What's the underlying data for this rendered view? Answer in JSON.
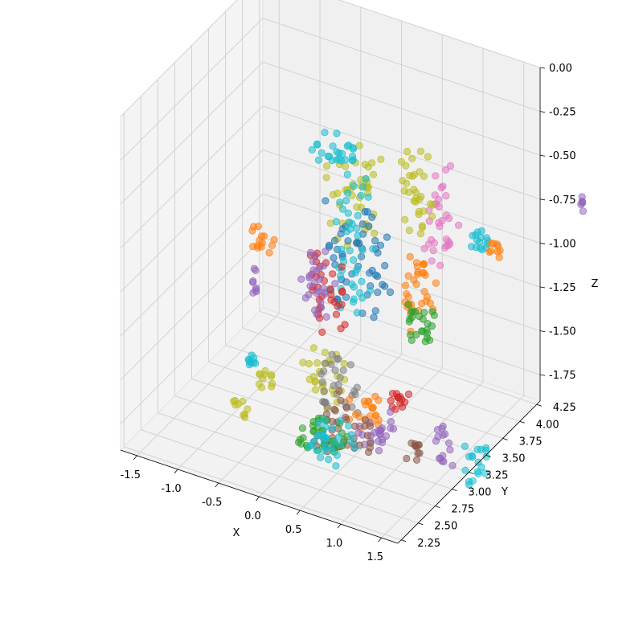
{
  "chart_data": {
    "type": "scatter",
    "projection": "3d",
    "title": "",
    "xlabel": "X",
    "ylabel": "Y",
    "zlabel": "Z",
    "xlim": [
      -1.7,
      1.7
    ],
    "ylim": [
      2.2,
      4.3
    ],
    "zlim": [
      -1.9,
      0.0
    ],
    "x_ticks": [
      "-1.5",
      "-1.0",
      "-0.5",
      "0.0",
      "0.5",
      "1.0",
      "1.5"
    ],
    "y_ticks": [
      "2.25",
      "2.50",
      "2.75",
      "3.00",
      "3.25",
      "3.50",
      "3.75",
      "4.00",
      "4.25"
    ],
    "z_ticks": [
      "0.00",
      "-0.25",
      "-0.50",
      "-0.75",
      "-1.00",
      "-1.25",
      "-1.50",
      "-1.75"
    ],
    "grid": true,
    "legend": "none",
    "marker": "circle",
    "marker_alpha": 0.55,
    "color_cycle": [
      "#1f77b4",
      "#ff7f0e",
      "#2ca02c",
      "#d62728",
      "#9467bd",
      "#8c564b",
      "#e377c2",
      "#7f7f7f",
      "#bcbd22",
      "#17becf"
    ],
    "clusters": [
      {
        "color": "#17becf",
        "center": [
          0.25,
          3.3,
          -0.85
        ],
        "size": [
          0.35,
          0.3,
          0.7
        ]
      },
      {
        "color": "#bcbd22",
        "center": [
          0.0,
          3.55,
          -0.7
        ],
        "size": [
          0.5,
          0.35,
          0.5
        ]
      },
      {
        "color": "#1f77b4",
        "center": [
          0.15,
          3.45,
          -1.0
        ],
        "size": [
          0.7,
          0.4,
          0.6
        ]
      },
      {
        "color": "#bcbd22",
        "center": [
          0.6,
          3.8,
          -0.7
        ],
        "size": [
          0.35,
          0.3,
          0.45
        ]
      },
      {
        "color": "#e377c2",
        "center": [
          0.85,
          3.85,
          -0.8
        ],
        "size": [
          0.25,
          0.3,
          0.5
        ]
      },
      {
        "color": "#ff7f0e",
        "center": [
          0.7,
          3.7,
          -1.2
        ],
        "size": [
          0.35,
          0.3,
          0.4
        ]
      },
      {
        "color": "#d62728",
        "center": [
          -0.05,
          3.3,
          -1.15
        ],
        "size": [
          0.35,
          0.3,
          0.45
        ]
      },
      {
        "color": "#9467bd",
        "center": [
          -0.2,
          3.3,
          -1.15
        ],
        "size": [
          0.2,
          0.3,
          0.4
        ]
      },
      {
        "color": "#2ca02c",
        "center": [
          0.75,
          3.65,
          -1.35
        ],
        "size": [
          0.35,
          0.25,
          0.2
        ]
      },
      {
        "color": "#17becf",
        "center": [
          -0.1,
          3.45,
          -0.45
        ],
        "size": [
          0.5,
          0.2,
          0.15
        ]
      },
      {
        "color": "#7f7f7f",
        "center": [
          0.3,
          3.05,
          -1.55
        ],
        "size": [
          0.5,
          0.25,
          0.25
        ]
      },
      {
        "color": "#17becf",
        "center": [
          0.35,
          2.8,
          -1.75
        ],
        "size": [
          0.45,
          0.35,
          0.2
        ]
      },
      {
        "color": "#2ca02c",
        "center": [
          0.25,
          2.85,
          -1.75
        ],
        "size": [
          0.55,
          0.4,
          0.15
        ]
      },
      {
        "color": "#8c564b",
        "center": [
          0.5,
          2.9,
          -1.7
        ],
        "size": [
          0.6,
          0.4,
          0.2
        ]
      },
      {
        "color": "#ff7f0e",
        "center": [
          0.6,
          3.05,
          -1.65
        ],
        "size": [
          0.35,
          0.2,
          0.15
        ]
      },
      {
        "color": "#9467bd",
        "center": [
          0.8,
          2.95,
          -1.7
        ],
        "size": [
          0.3,
          0.3,
          0.15
        ]
      },
      {
        "color": "#bcbd22",
        "center": [
          0.05,
          3.1,
          -1.55
        ],
        "size": [
          0.4,
          0.2,
          0.3
        ]
      },
      {
        "color": "#ff7f0e",
        "center": [
          -0.95,
          3.4,
          -1.05
        ],
        "size": [
          0.25,
          0.05,
          0.15
        ]
      },
      {
        "color": "#9467bd",
        "center": [
          -1.05,
          3.4,
          -1.3
        ],
        "size": [
          0.05,
          0.05,
          0.15
        ]
      },
      {
        "color": "#17becf",
        "center": [
          1.2,
          4.05,
          -1.0
        ],
        "size": [
          0.3,
          0.05,
          0.15
        ]
      },
      {
        "color": "#ff7f0e",
        "center": [
          1.35,
          4.05,
          -1.0
        ],
        "size": [
          0.15,
          0.05,
          0.1
        ]
      },
      {
        "color": "#9467bd",
        "center": [
          1.55,
          3.05,
          -1.7
        ],
        "size": [
          0.15,
          0.1,
          0.25
        ]
      },
      {
        "color": "#17becf",
        "center": [
          1.95,
          3.05,
          -1.75
        ],
        "size": [
          0.25,
          0.1,
          0.25
        ]
      },
      {
        "color": "#8c564b",
        "center": [
          1.35,
          2.85,
          -1.7
        ],
        "size": [
          0.15,
          0.05,
          0.15
        ]
      },
      {
        "color": "#9467bd",
        "center": [
          2.3,
          4.2,
          -0.65
        ],
        "size": [
          0.02,
          0.02,
          0.1
        ]
      },
      {
        "color": "#bcbd22",
        "center": [
          -0.55,
          2.95,
          -1.6
        ],
        "size": [
          0.2,
          0.05,
          0.1
        ]
      },
      {
        "color": "#17becf",
        "center": [
          -0.7,
          2.95,
          -1.55
        ],
        "size": [
          0.15,
          0.05,
          0.1
        ]
      },
      {
        "color": "#bcbd22",
        "center": [
          -0.65,
          2.7,
          -1.7
        ],
        "size": [
          0.15,
          0.05,
          0.1
        ]
      },
      {
        "color": "#d62728",
        "center": [
          0.95,
          3.1,
          -1.55
        ],
        "size": [
          0.25,
          0.1,
          0.1
        ]
      }
    ]
  }
}
